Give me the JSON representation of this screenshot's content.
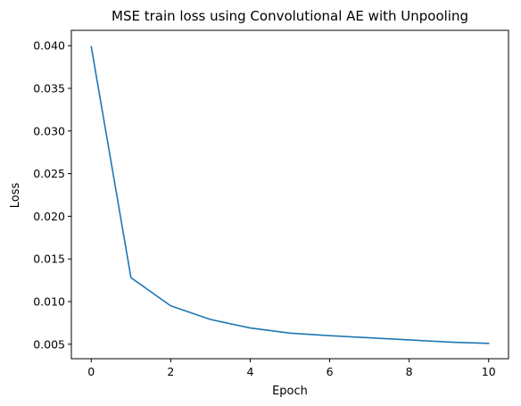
{
  "chart_data": {
    "type": "line",
    "title": "MSE train loss using Convolutional AE with Unpooling",
    "xlabel": "Epoch",
    "ylabel": "Loss",
    "xlim": [
      -0.5,
      10.5
    ],
    "ylim": [
      0.0033,
      0.0418
    ],
    "xticks": [
      0,
      2,
      4,
      6,
      8,
      10
    ],
    "xtick_labels": [
      "0",
      "2",
      "4",
      "6",
      "8",
      "10"
    ],
    "yticks": [
      0.005,
      0.01,
      0.015,
      0.02,
      0.025,
      0.03,
      0.035,
      0.04
    ],
    "ytick_labels": [
      "0.005",
      "0.010",
      "0.015",
      "0.020",
      "0.025",
      "0.030",
      "0.035",
      "0.040"
    ],
    "grid": false,
    "series": [
      {
        "name": "train loss",
        "color": "#1f77b4",
        "x": [
          0,
          1,
          2,
          3,
          4,
          5,
          6,
          7,
          8,
          9,
          10
        ],
        "values": [
          0.0399,
          0.0128,
          0.0095,
          0.0079,
          0.0069,
          0.0063,
          0.006,
          0.00575,
          0.0055,
          0.00525,
          0.0051
        ]
      }
    ]
  }
}
